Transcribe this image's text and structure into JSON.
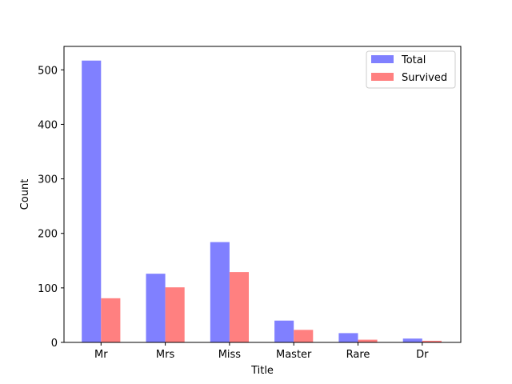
{
  "chart_data": {
    "type": "bar",
    "xlabel": "Title",
    "ylabel": "Count",
    "categories": [
      "Mr",
      "Mrs",
      "Miss",
      "Master",
      "Rare",
      "Dr"
    ],
    "series": [
      {
        "name": "Total",
        "values": [
          517,
          126,
          184,
          40,
          17,
          7
        ],
        "color": "#8080ff"
      },
      {
        "name": "Survived",
        "values": [
          81,
          101,
          129,
          23,
          5,
          3
        ],
        "color": "#ff8080"
      }
    ],
    "ylim": [
      0,
      543
    ],
    "yticks": [
      0,
      100,
      200,
      300,
      400,
      500
    ],
    "legend_position": "top-right",
    "grid": false
  }
}
